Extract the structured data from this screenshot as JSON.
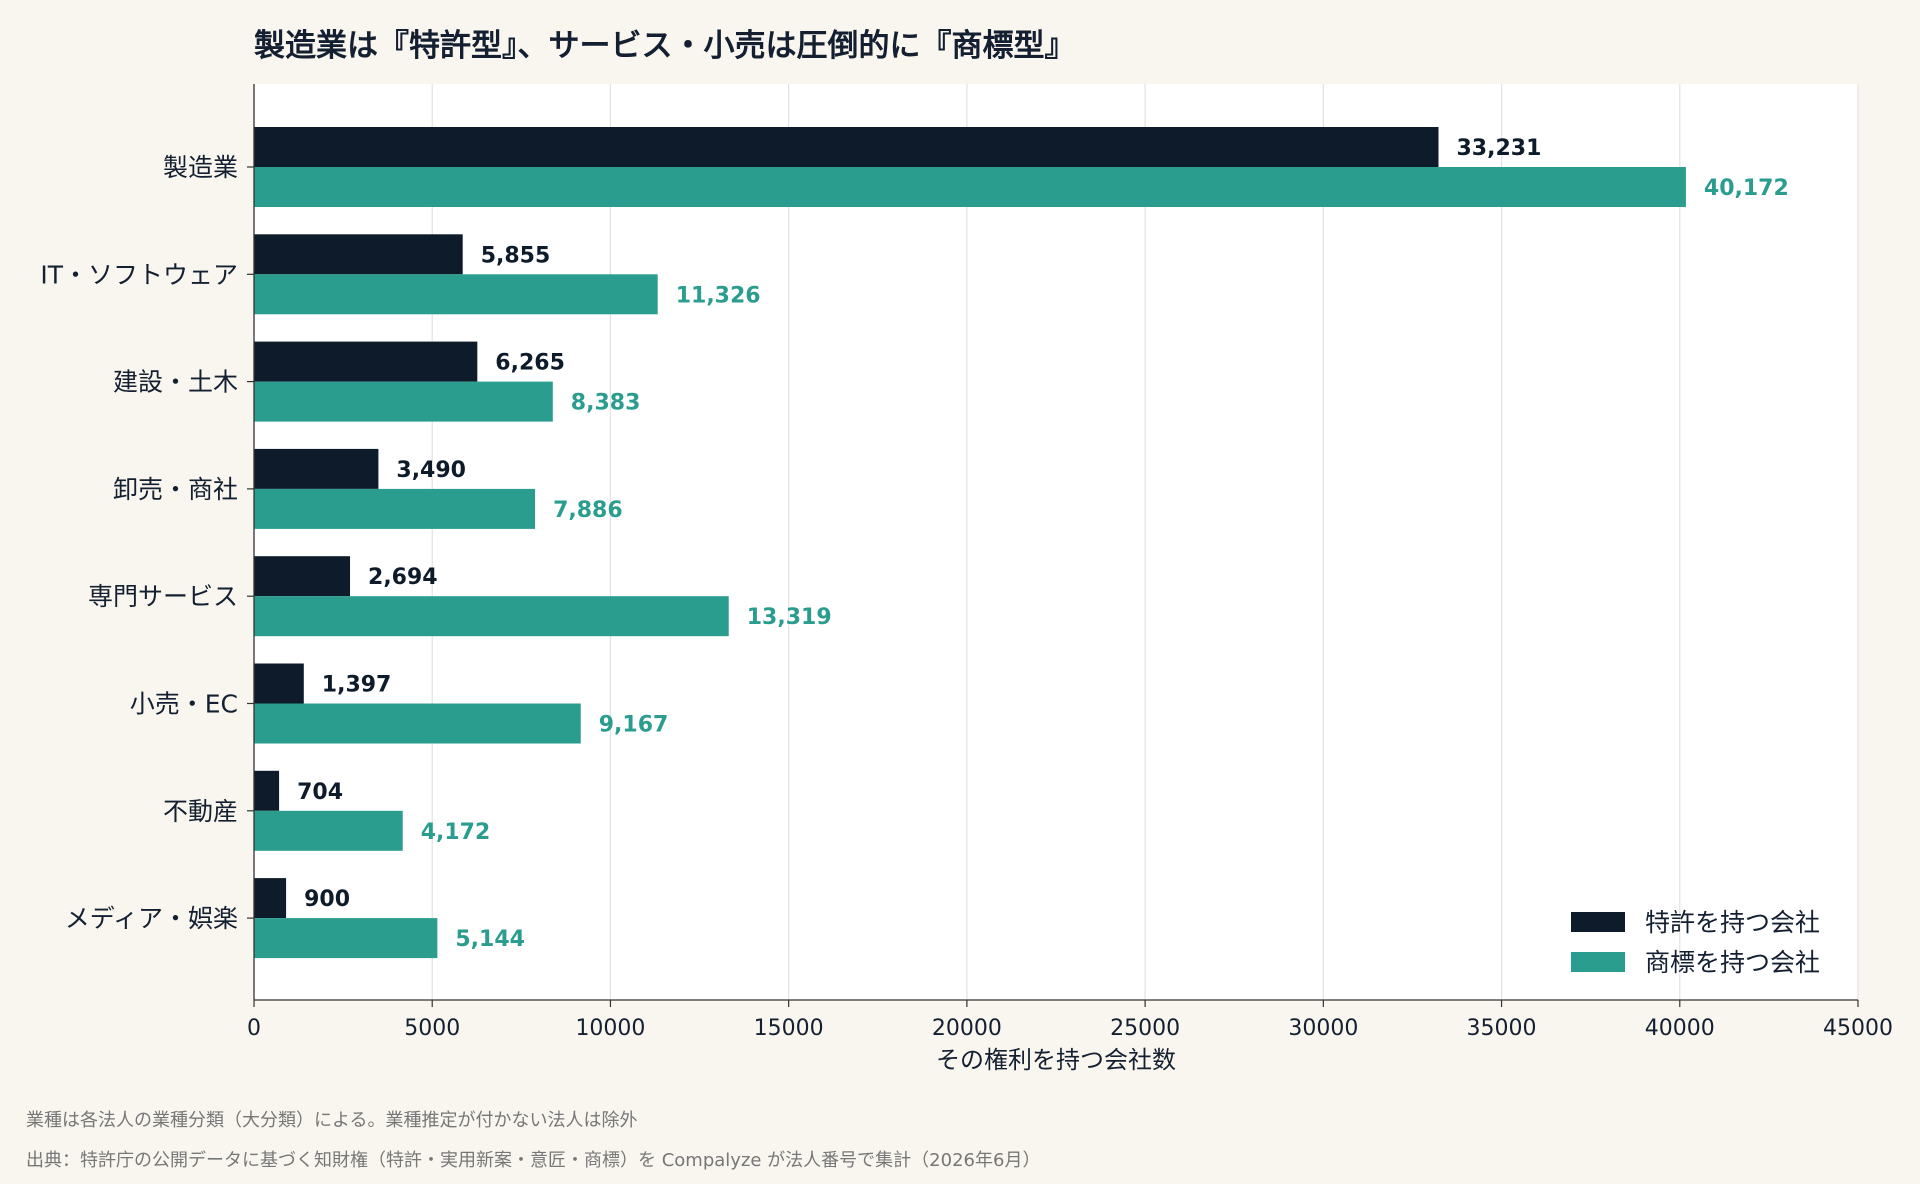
{
  "chart_data": {
    "type": "bar",
    "orientation": "horizontal",
    "title": "製造業は『特許型』、サービス・小売は圧倒的に『商標型』",
    "xlabel": "その権利を持つ会社数",
    "ylabel": "",
    "xlim": [
      0,
      45000
    ],
    "xticks": [
      0,
      5000,
      10000,
      15000,
      20000,
      25000,
      30000,
      35000,
      40000,
      45000
    ],
    "xtick_labels": [
      "0",
      "5000",
      "10000",
      "15000",
      "20000",
      "25000",
      "30000",
      "35000",
      "40000",
      "45000"
    ],
    "grid": "vertical",
    "legend_position": "bottom-right",
    "categories": [
      "製造業",
      "IT・ソフトウェア",
      "建設・土木",
      "卸売・商社",
      "専門サービス",
      "小売・EC",
      "不動産",
      "メディア・娯楽"
    ],
    "series": [
      {
        "name": "特許を持つ会社",
        "color": "#0d1b2a",
        "values": [
          33231,
          5855,
          6265,
          3490,
          2694,
          1397,
          704,
          900
        ],
        "labels": [
          "33,231",
          "5,855",
          "6,265",
          "3,490",
          "2,694",
          "1,397",
          "704",
          "900"
        ]
      },
      {
        "name": "商標を持つ会社",
        "color": "#2a9d8f",
        "values": [
          40172,
          11326,
          8383,
          7886,
          13319,
          9167,
          4172,
          5144
        ],
        "labels": [
          "40,172",
          "11,326",
          "8,383",
          "7,886",
          "13,319",
          "9,167",
          "4,172",
          "5,144"
        ]
      }
    ]
  },
  "notes": {
    "line1": "業種は各法人の業種分類（大分類）による。業種推定が付かない法人は除外",
    "line2": "出典：特許庁の公開データに基づく知財権（特許・実用新案・意匠・商標）を Compalyze が法人番号で集計（2026年6月）"
  }
}
